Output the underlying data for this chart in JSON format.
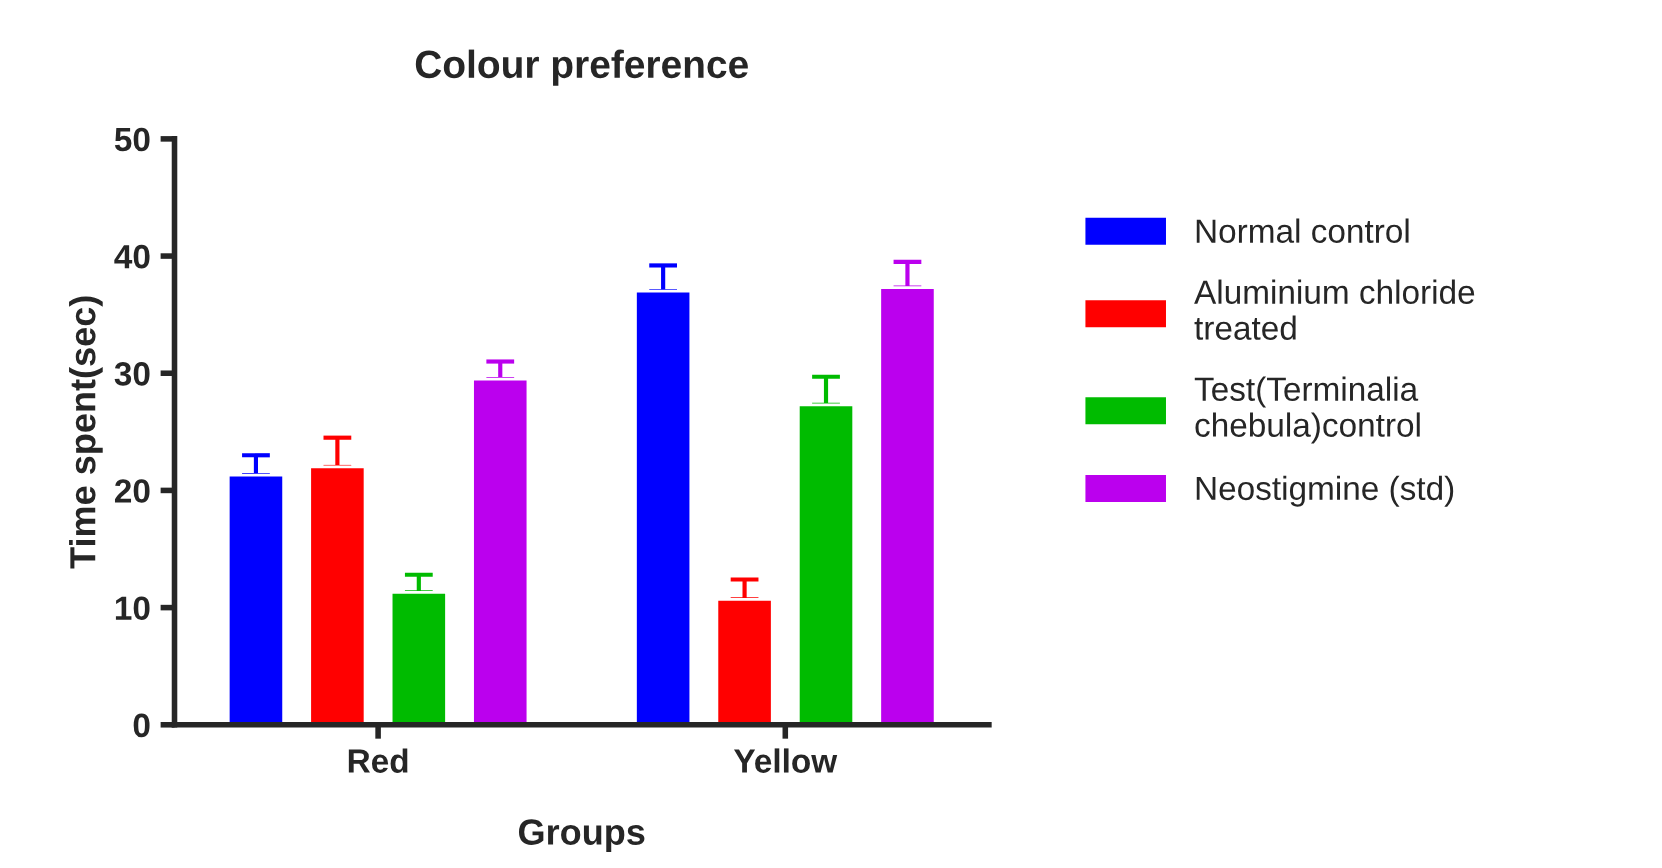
{
  "chart_data": {
    "type": "bar",
    "title": "Colour preference",
    "xlabel": "Groups",
    "ylabel": "Time spent(sec)",
    "categories": [
      "Red",
      "Yellow"
    ],
    "series": [
      {
        "name": "Normal control",
        "color": "#0000ff",
        "values": [
          21.3,
          37
        ],
        "errors": [
          [
            21.3,
            23
          ],
          [
            37,
            39.2
          ]
        ]
      },
      {
        "name": "Aluminium chloride\ntreated",
        "color": "#ff0000",
        "values": [
          22,
          10.7
        ],
        "errors": [
          [
            22,
            24.5
          ],
          [
            10.7,
            12.4
          ]
        ]
      },
      {
        "name": "Test(Terminalia\nchebula)control",
        "color": "#00bb00",
        "values": [
          11.3,
          27.3
        ],
        "errors": [
          [
            11.3,
            12.8
          ],
          [
            27.3,
            29.7
          ]
        ]
      },
      {
        "name": "Neostigmine (std)",
        "color": "#bb00ee",
        "values": [
          29.5,
          37.3
        ],
        "errors": [
          [
            29.5,
            31
          ],
          [
            37.3,
            39.5
          ]
        ]
      }
    ],
    "ylim": [
      0,
      50
    ],
    "yticks": [
      0,
      10,
      20,
      30,
      40,
      50
    ],
    "grid": false,
    "legend": "right"
  }
}
